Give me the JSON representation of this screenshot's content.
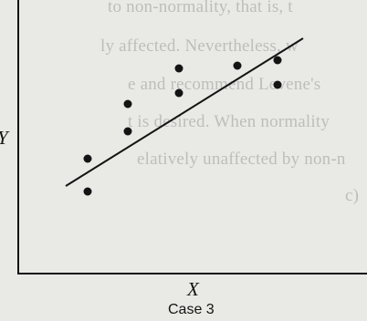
{
  "background_text": [
    "to non-normality, that is, t",
    "ly affected. Nevertheless, w",
    "e and recommend Levene's",
    "t is desired. When normality",
    "elatively unaffected by non-n",
    "c)"
  ],
  "chart_data": {
    "type": "scatter",
    "title": "",
    "caption": "Case 3",
    "xlabel": "X",
    "ylabel": "Y",
    "xlim": [
      0,
      10
    ],
    "ylim": [
      0,
      10
    ],
    "grid": false,
    "legend": "none",
    "points": [
      {
        "x": 1.9,
        "y": 4.2
      },
      {
        "x": 1.9,
        "y": 3.0
      },
      {
        "x": 3.0,
        "y": 6.2
      },
      {
        "x": 3.0,
        "y": 5.2
      },
      {
        "x": 4.4,
        "y": 7.5
      },
      {
        "x": 4.4,
        "y": 6.6
      },
      {
        "x": 6.0,
        "y": 7.6
      },
      {
        "x": 7.1,
        "y": 7.8
      },
      {
        "x": 7.1,
        "y": 6.9
      }
    ],
    "fit_line": {
      "x": [
        1.3,
        7.8
      ],
      "y": [
        3.2,
        8.6
      ]
    }
  }
}
